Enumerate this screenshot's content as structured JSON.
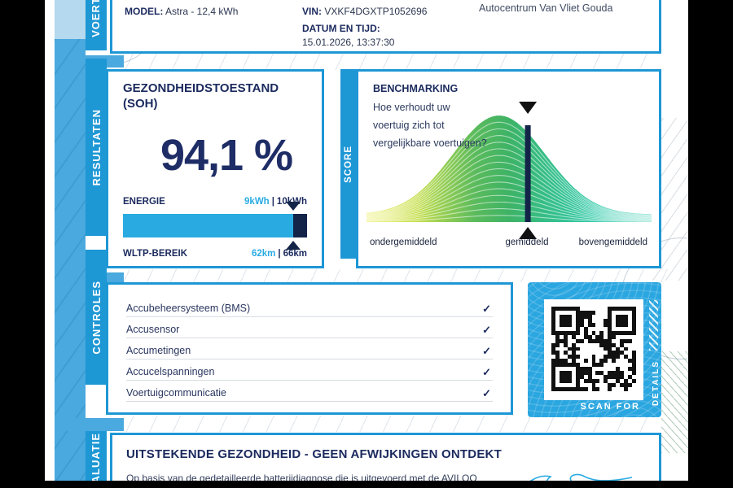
{
  "colors": {
    "tab_blue": "#1e97d5",
    "column_blue": "#4aa9de",
    "pale_blue": "#b5d9ee",
    "navy": "#1b2a5e",
    "accent_blue": "#29abe2",
    "qr_blue": "#2aa6e0",
    "bar_dark": "#132448"
  },
  "sidebar": {
    "tabs": [
      {
        "label": "VOERTUIG"
      },
      {
        "label": "RESULTATEN"
      },
      {
        "label": "CONTROLES"
      },
      {
        "label": "EVALUATIE"
      }
    ]
  },
  "vehicle": {
    "model_label": "MODEL:",
    "model_value": "Astra - 12,4 kWh",
    "vin_label": "VIN:",
    "vin_value": "VXKF4DGXTP1052696",
    "datetime_label": "DATUM EN TIJD:",
    "datetime_value": "15.01.2026, 13:37:30",
    "dealer": "Autocentrum Van Vliet Gouda"
  },
  "soh": {
    "title_line1": "GEZONDHEIDSTOESTAND",
    "title_line2": "(SOH)",
    "value": "94,1 %",
    "energy_label": "ENERGIE",
    "energy_current": "9kWh",
    "sep": "|",
    "energy_total": "10kWh",
    "wltp_label": "WLTP-BEREIK",
    "wltp_current": "62km",
    "wltp_total": "66km",
    "bar_fill_percent": 92.5
  },
  "benchmark": {
    "score_label": "SCORE",
    "heading": "BENCHMARKING",
    "sub_line1": "Hoe verhoudt uw",
    "sub_line2": "voertuig zich tot",
    "sub_line3": "vergelijkbare voertuigen?",
    "axis_left": "ondergemiddeld",
    "axis_mid": "gemiddeld",
    "axis_right": "bovengemiddeld"
  },
  "controles": {
    "check_glyph": "✓",
    "items": [
      {
        "label": "Accubeheersysteem (BMS)",
        "checked": true
      },
      {
        "label": "Accusensor",
        "checked": true
      },
      {
        "label": "Accumetingen",
        "checked": true
      },
      {
        "label": "Accucelspanningen",
        "checked": true
      },
      {
        "label": "Voertuigcommunicatie",
        "checked": true
      }
    ]
  },
  "qr": {
    "scan_text": "SCAN FOR",
    "details_text": "DETAILS"
  },
  "evaluation": {
    "heading": "UITSTEKENDE GEZONDHEID - GEEN AFWIJKINGEN ONTDEKT",
    "body": "Op basis van de gedetailleerde batterijdiagnose die is uitgevoerd met de AVILOO FLASH Test"
  },
  "chart_data": {
    "type": "area",
    "title": "BENCHMARKING",
    "subtitle": "Hoe verhoudt uw voertuig zich tot vergelijkbare voertuigen?",
    "description": "normal-distribution benchmark curve of comparable vehicles, built from nested line strokes",
    "x_labels": [
      "ondergemiddeld",
      "gemiddeld",
      "bovengemiddeld"
    ],
    "ylabel": "SCORE",
    "peak_fraction": 0.465,
    "marker_fraction": 0.566,
    "marker_label": "gemiddeld",
    "n_lines": 15,
    "gradient_stops": [
      {
        "offset": 0,
        "color": "#e9eb49"
      },
      {
        "offset": 0.18,
        "color": "#c4de4d"
      },
      {
        "offset": 0.38,
        "color": "#5bbb5c"
      },
      {
        "offset": 0.5,
        "color": "#3eb366"
      },
      {
        "offset": 0.62,
        "color": "#36bd85"
      },
      {
        "offset": 0.8,
        "color": "#2fc9a8"
      },
      {
        "offset": 1,
        "color": "#36cdb2"
      }
    ],
    "grid": false,
    "legend": false
  }
}
